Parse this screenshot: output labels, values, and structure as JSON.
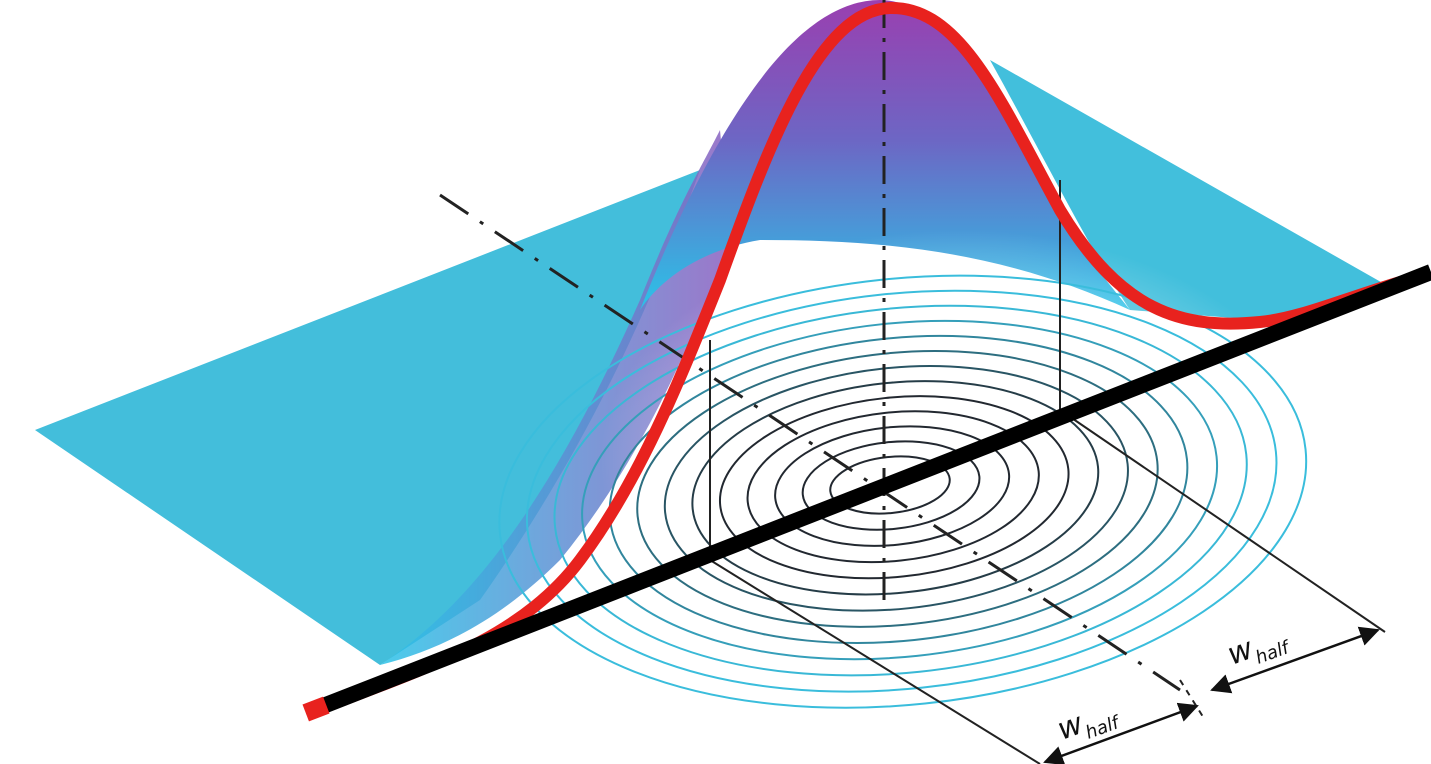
{
  "labels": {
    "w_main": "w",
    "w_sub": "half"
  },
  "colors": {
    "surface_cyan": "#2bbde0",
    "surface_peak": "#8a4fb8",
    "profile_red": "#e8221e",
    "axis_black": "#000000",
    "contour_outer": "#3ab8dc",
    "contour_inner": "#303030"
  }
}
